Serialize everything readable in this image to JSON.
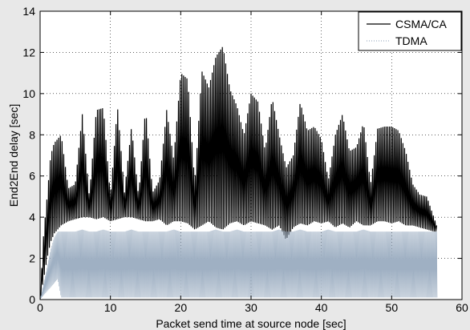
{
  "chart_data": {
    "type": "line",
    "title": "",
    "xlabel": "Packet send time at source node [sec]",
    "ylabel": "End2End delay [sec]",
    "xlim": [
      0,
      60
    ],
    "ylim": [
      0,
      14
    ],
    "xticks": [
      0,
      10,
      20,
      30,
      40,
      50,
      60
    ],
    "yticks": [
      0,
      2,
      4,
      6,
      8,
      10,
      12,
      14
    ],
    "grid": true,
    "legend_position": "top-right",
    "colors": {
      "CSMA/CA": "#000000",
      "TDMA": "#9fb0c3",
      "background": "#ffffff",
      "figure": "#e8e8e8"
    },
    "series": [
      {
        "name": "CSMA/CA",
        "style": "solid",
        "x": [
          0,
          0.5,
          1,
          1.5,
          2,
          3,
          4,
          5,
          6,
          7,
          8,
          9,
          10,
          11,
          12,
          13,
          14,
          15,
          16,
          17,
          18,
          19,
          20,
          21,
          22,
          23,
          24,
          25,
          26,
          27,
          28,
          29,
          30,
          31,
          32,
          33,
          34,
          35,
          36,
          37,
          38,
          39,
          40,
          41,
          42,
          43,
          44,
          45,
          46,
          47,
          48,
          49,
          50,
          51,
          52,
          53,
          54,
          55,
          56,
          56.5
        ],
        "y_low": [
          0,
          1.0,
          2.0,
          2.8,
          3.2,
          3.6,
          3.8,
          3.9,
          4.0,
          4.0,
          3.9,
          4.0,
          3.8,
          3.9,
          4.0,
          4.0,
          3.9,
          3.8,
          3.8,
          3.9,
          3.6,
          3.8,
          3.8,
          3.7,
          3.4,
          3.6,
          3.8,
          3.5,
          3.4,
          3.7,
          3.8,
          3.6,
          3.8,
          3.7,
          3.6,
          3.4,
          3.6,
          2.9,
          3.5,
          3.7,
          3.6,
          3.8,
          3.7,
          3.8,
          3.5,
          3.7,
          3.5,
          3.8,
          3.6,
          3.6,
          3.8,
          3.8,
          3.7,
          3.8,
          3.6,
          3.6,
          3.5,
          3.4,
          3.3,
          3.3
        ],
        "y_high": [
          0,
          3.2,
          5.0,
          7.0,
          7.6,
          8.0,
          5.4,
          5.6,
          9.0,
          5.0,
          9.2,
          9.3,
          5.0,
          9.4,
          5.2,
          8.4,
          5.0,
          9.3,
          5.2,
          5.8,
          9.2,
          6.8,
          11.0,
          10.7,
          5.6,
          11.1,
          10.3,
          11.8,
          12.3,
          10.2,
          9.4,
          8.0,
          10.0,
          9.6,
          7.2,
          9.8,
          8.0,
          6.4,
          7.0,
          9.6,
          8.2,
          8.4,
          7.8,
          5.8,
          8.0,
          9.0,
          7.2,
          7.4,
          8.6,
          5.6,
          8.3,
          8.4,
          8.4,
          8.2,
          7.2,
          5.6,
          5.1,
          5.0,
          4.0,
          3.5
        ]
      },
      {
        "name": "TDMA",
        "style": "dotted",
        "x": [
          0,
          0.5,
          1,
          1.5,
          2,
          2.5,
          3,
          4,
          5,
          6,
          7,
          8,
          9,
          10,
          11,
          12,
          13,
          14,
          15,
          16,
          17,
          18,
          19,
          20,
          21,
          22,
          23,
          24,
          25,
          26,
          27,
          28,
          29,
          30,
          31,
          32,
          33,
          34,
          35,
          36,
          37,
          38,
          39,
          40,
          41,
          42,
          43,
          44,
          45,
          46,
          47,
          48,
          49,
          50,
          51,
          52,
          53,
          54,
          55,
          56,
          56.5
        ],
        "y_low": [
          0,
          0.2,
          0.4,
          0.6,
          0.8,
          1.0,
          0.1,
          0.1,
          0.1,
          0.1,
          0.1,
          0.1,
          0.1,
          0.1,
          0.1,
          0.1,
          0.1,
          0.1,
          0.1,
          0.1,
          0.1,
          0.1,
          0.1,
          0.1,
          0.1,
          0.1,
          0.1,
          0.1,
          0.1,
          0.1,
          0.1,
          0.1,
          0.1,
          0.1,
          0.1,
          0.1,
          0.1,
          0.1,
          0.1,
          0.1,
          0.1,
          0.1,
          0.1,
          0.1,
          0.1,
          0.1,
          0.1,
          0.1,
          0.1,
          0.1,
          0.1,
          0.1,
          0.1,
          0.1,
          0.1,
          0.1,
          0.1,
          0.1,
          0.1,
          0.1,
          0.1
        ],
        "y_high": [
          0,
          0.8,
          1.6,
          2.4,
          3.0,
          3.3,
          3.3,
          3.3,
          3.3,
          3.4,
          3.3,
          3.3,
          3.4,
          3.3,
          3.3,
          3.3,
          3.4,
          3.3,
          3.3,
          3.3,
          3.3,
          3.3,
          3.4,
          3.3,
          3.3,
          3.3,
          3.3,
          3.3,
          3.4,
          3.3,
          3.3,
          3.4,
          3.3,
          3.3,
          3.3,
          3.3,
          3.3,
          3.4,
          3.3,
          3.3,
          3.4,
          3.3,
          3.3,
          3.3,
          3.4,
          3.3,
          3.3,
          3.3,
          3.3,
          3.4,
          3.3,
          3.3,
          3.3,
          3.3,
          3.3,
          3.3,
          3.3,
          3.3,
          3.3,
          3.3,
          3.3
        ]
      }
    ]
  }
}
